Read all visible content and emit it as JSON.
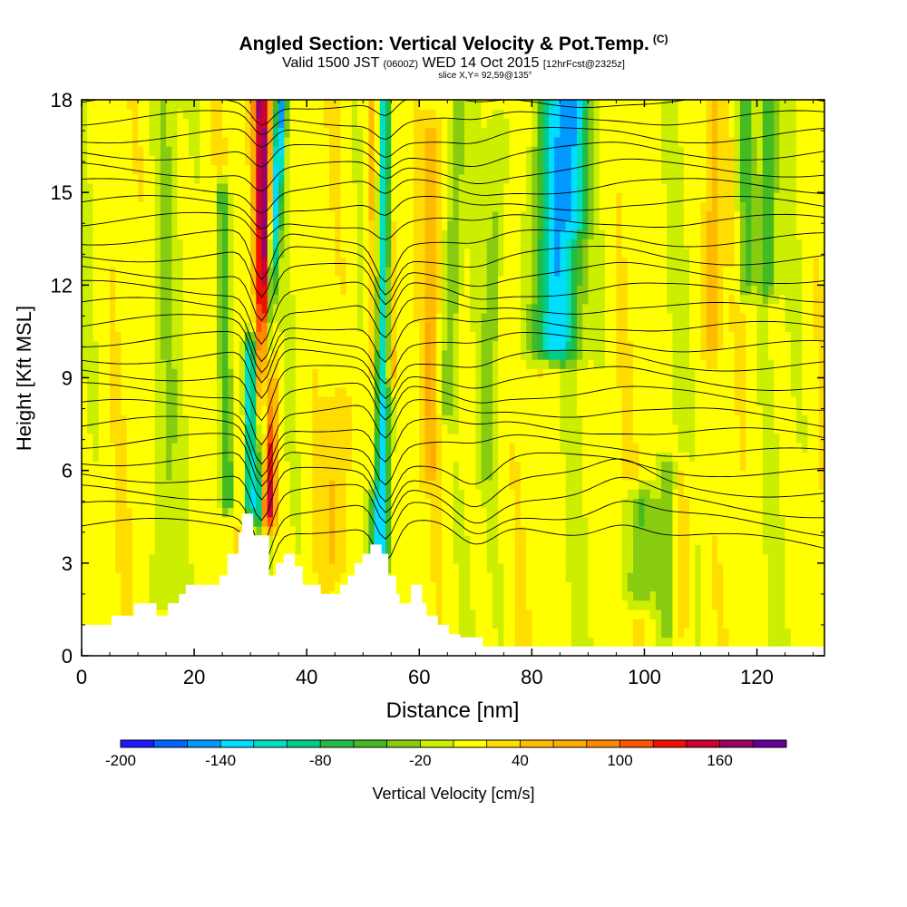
{
  "header": {
    "title": "Angled Section: Vertical Velocity & Pot.Temp.",
    "title_mark": "(C)",
    "valid_prefix": "Valid 1500 JST",
    "valid_utc": "(0600Z)",
    "valid_date": "WED 14 Oct 2015",
    "forecast": "[12hrFcst@2325z]",
    "slice": "slice X,Y= 92,59@135°"
  },
  "chart_data": {
    "type": "heatmap",
    "xlabel": "Distance [nm]",
    "ylabel": "Height [Kft MSL]",
    "xlim": [
      0,
      132
    ],
    "ylim": [
      0,
      18
    ],
    "x_ticks": [
      0,
      20,
      40,
      60,
      80,
      100,
      120
    ],
    "y_ticks": [
      0,
      3,
      6,
      9,
      12,
      15,
      18
    ],
    "terrain_profile": [
      [
        0,
        1.0
      ],
      [
        5.3,
        1.0
      ],
      [
        5.3,
        1.3
      ],
      [
        9.3,
        1.3
      ],
      [
        9.3,
        1.7
      ],
      [
        13.3,
        1.7
      ],
      [
        13.3,
        1.3
      ],
      [
        15.3,
        1.3
      ],
      [
        15.3,
        1.7
      ],
      [
        17.3,
        1.7
      ],
      [
        17.3,
        2.0
      ],
      [
        18.5,
        2.0
      ],
      [
        18.5,
        2.3
      ],
      [
        24.5,
        2.3
      ],
      [
        24.5,
        2.6
      ],
      [
        25.9,
        2.6
      ],
      [
        25.9,
        3.3
      ],
      [
        27.9,
        3.3
      ],
      [
        27.9,
        4.0
      ],
      [
        28.5,
        4.0
      ],
      [
        28.5,
        4.6
      ],
      [
        30.5,
        4.6
      ],
      [
        30.5,
        3.9
      ],
      [
        33.3,
        3.9
      ],
      [
        33.3,
        2.6
      ],
      [
        34.5,
        2.6
      ],
      [
        34.5,
        3.0
      ],
      [
        35.9,
        3.0
      ],
      [
        35.9,
        3.3
      ],
      [
        37.9,
        3.3
      ],
      [
        37.9,
        2.9
      ],
      [
        39.3,
        2.9
      ],
      [
        39.3,
        2.3
      ],
      [
        42.5,
        2.3
      ],
      [
        42.5,
        2.0
      ],
      [
        45.9,
        2.0
      ],
      [
        45.9,
        2.3
      ],
      [
        47.3,
        2.3
      ],
      [
        47.3,
        2.6
      ],
      [
        48.5,
        2.6
      ],
      [
        48.5,
        3.0
      ],
      [
        49.9,
        3.0
      ],
      [
        49.9,
        3.3
      ],
      [
        51.3,
        3.3
      ],
      [
        51.3,
        3.6
      ],
      [
        53.3,
        3.6
      ],
      [
        53.3,
        3.3
      ],
      [
        54.5,
        3.3
      ],
      [
        54.5,
        2.6
      ],
      [
        55.9,
        2.6
      ],
      [
        55.9,
        2.0
      ],
      [
        56.5,
        2.0
      ],
      [
        56.5,
        1.7
      ],
      [
        58.5,
        1.7
      ],
      [
        58.5,
        2.3
      ],
      [
        60.5,
        2.3
      ],
      [
        60.5,
        1.7
      ],
      [
        61.3,
        1.7
      ],
      [
        61.3,
        1.3
      ],
      [
        63.3,
        1.3
      ],
      [
        63.3,
        1.0
      ],
      [
        65.3,
        1.0
      ],
      [
        65.3,
        0.7
      ],
      [
        67.3,
        0.7
      ],
      [
        67.3,
        0.6
      ],
      [
        71.3,
        0.6
      ],
      [
        71.3,
        0.3
      ],
      [
        132,
        0.3
      ]
    ],
    "colorbar": {
      "label": "Vertical Velocity [cm/s]",
      "tick_labels": [
        "-200",
        "-140",
        "-80",
        "-20",
        "40",
        "100",
        "160"
      ],
      "tick_values": [
        -200,
        -140,
        -80,
        -20,
        40,
        100,
        160
      ],
      "levels": [
        -200,
        -180,
        -160,
        -140,
        -120,
        -100,
        -80,
        -60,
        -40,
        -20,
        0,
        20,
        40,
        60,
        80,
        100,
        120,
        140,
        160,
        180,
        200
      ],
      "colors": [
        "#1a1aff",
        "#0066ff",
        "#0099ff",
        "#00ddff",
        "#00e0c0",
        "#00cc88",
        "#22bb44",
        "#44bb22",
        "#88cc11",
        "#ccee00",
        "#ffff00",
        "#ffdd00",
        "#ffbb00",
        "#ffaa00",
        "#ff8800",
        "#ff5500",
        "#ee1100",
        "#cc0033",
        "#990066",
        "#660099"
      ]
    },
    "velocity_features": [
      {
        "x0": 33,
        "x1": 32,
        "y0": 4.6,
        "y1": 18,
        "w": 1.6,
        "v": 170
      },
      {
        "x0": 31.5,
        "x1": 35.5,
        "y0": 4.6,
        "y1": 18,
        "w": 1.0,
        "v": -150
      },
      {
        "x0": 30,
        "x1": 30,
        "y0": 5,
        "y1": 10,
        "w": 1.0,
        "v": -140
      },
      {
        "x0": 26,
        "x1": 25,
        "y0": 5,
        "y1": 15,
        "w": 1.2,
        "v": -80
      },
      {
        "x0": 53,
        "x1": 54,
        "y0": 3.3,
        "y1": 18,
        "w": 1.4,
        "v": -140
      },
      {
        "x0": 52,
        "x1": 52,
        "y0": 6,
        "y1": 18,
        "w": 1.2,
        "v": 60
      },
      {
        "x0": 55,
        "x1": 55,
        "y0": 9,
        "y1": 18,
        "w": 1.2,
        "v": 60
      },
      {
        "x0": 62,
        "x1": 62,
        "y0": 6,
        "y1": 17,
        "w": 1.5,
        "v": 40
      },
      {
        "x0": 65,
        "x1": 67,
        "y0": 8,
        "y1": 18,
        "w": 1.5,
        "v": -40
      },
      {
        "x0": 72,
        "x1": 74,
        "y0": 6,
        "y1": 17,
        "w": 1.5,
        "v": -30
      },
      {
        "x0": 84,
        "x1": 85,
        "y0": 10,
        "y1": 18,
        "w": 4.0,
        "v": -140
      },
      {
        "x0": 88,
        "x1": 88,
        "y0": 14,
        "y1": 18,
        "w": 2.0,
        "v": -60
      },
      {
        "x0": 99,
        "x1": 99,
        "y0": 2,
        "y1": 5,
        "w": 2.5,
        "v": -60
      },
      {
        "x0": 104,
        "x1": 104,
        "y0": 1,
        "y1": 6,
        "w": 1.5,
        "v": -40
      },
      {
        "x0": 118,
        "x1": 118,
        "y0": 12,
        "y1": 18,
        "w": 1.5,
        "v": -60
      },
      {
        "x0": 122,
        "x1": 122,
        "y0": 12,
        "y1": 18,
        "w": 1.5,
        "v": -60
      },
      {
        "x0": 112,
        "x1": 112,
        "y0": 10,
        "y1": 18,
        "w": 1.5,
        "v": 40
      },
      {
        "x0": 107,
        "x1": 107,
        "y0": 1,
        "y1": 6,
        "w": 1.5,
        "v": 30
      },
      {
        "x0": 15,
        "x1": 15,
        "y0": 2,
        "y1": 18,
        "w": 2.0,
        "v": -20
      },
      {
        "x0": 45,
        "x1": 45,
        "y0": 3,
        "y1": 8,
        "w": 2.0,
        "v": 30
      }
    ]
  }
}
